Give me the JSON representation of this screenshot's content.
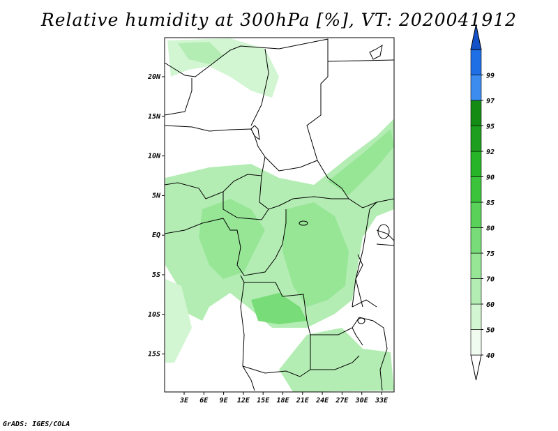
{
  "title": "Relative humidity at 300hPa [%], VT: 2020041912",
  "credit": "GrADS: IGES/COLA",
  "map": {
    "lat_ticks": [
      "20N",
      "15N",
      "10N",
      "5N",
      "EQ",
      "5S",
      "10S",
      "15S"
    ],
    "lon_ticks": [
      "3E",
      "6E",
      "9E",
      "12E",
      "15E",
      "18E",
      "21E",
      "24E",
      "27E",
      "30E",
      "33E"
    ]
  },
  "colorbar": {
    "levels": [
      {
        "label": "40",
        "color": "#f0fcf0"
      },
      {
        "label": "50",
        "color": "#d2f5d2"
      },
      {
        "label": "60",
        "color": "#b4edb4"
      },
      {
        "label": "70",
        "color": "#96e696"
      },
      {
        "label": "75",
        "color": "#78dc78"
      },
      {
        "label": "80",
        "color": "#5ad25a"
      },
      {
        "label": "85",
        "color": "#3cc33c"
      },
      {
        "label": "90",
        "color": "#28b428"
      },
      {
        "label": "92",
        "color": "#1e9e1e"
      },
      {
        "label": "95",
        "color": "#148c14"
      },
      {
        "label": "97",
        "color": "#3c8cf0"
      },
      {
        "label": "99",
        "color": "#1e6ee6"
      }
    ],
    "top_color": "#1450c8"
  }
}
